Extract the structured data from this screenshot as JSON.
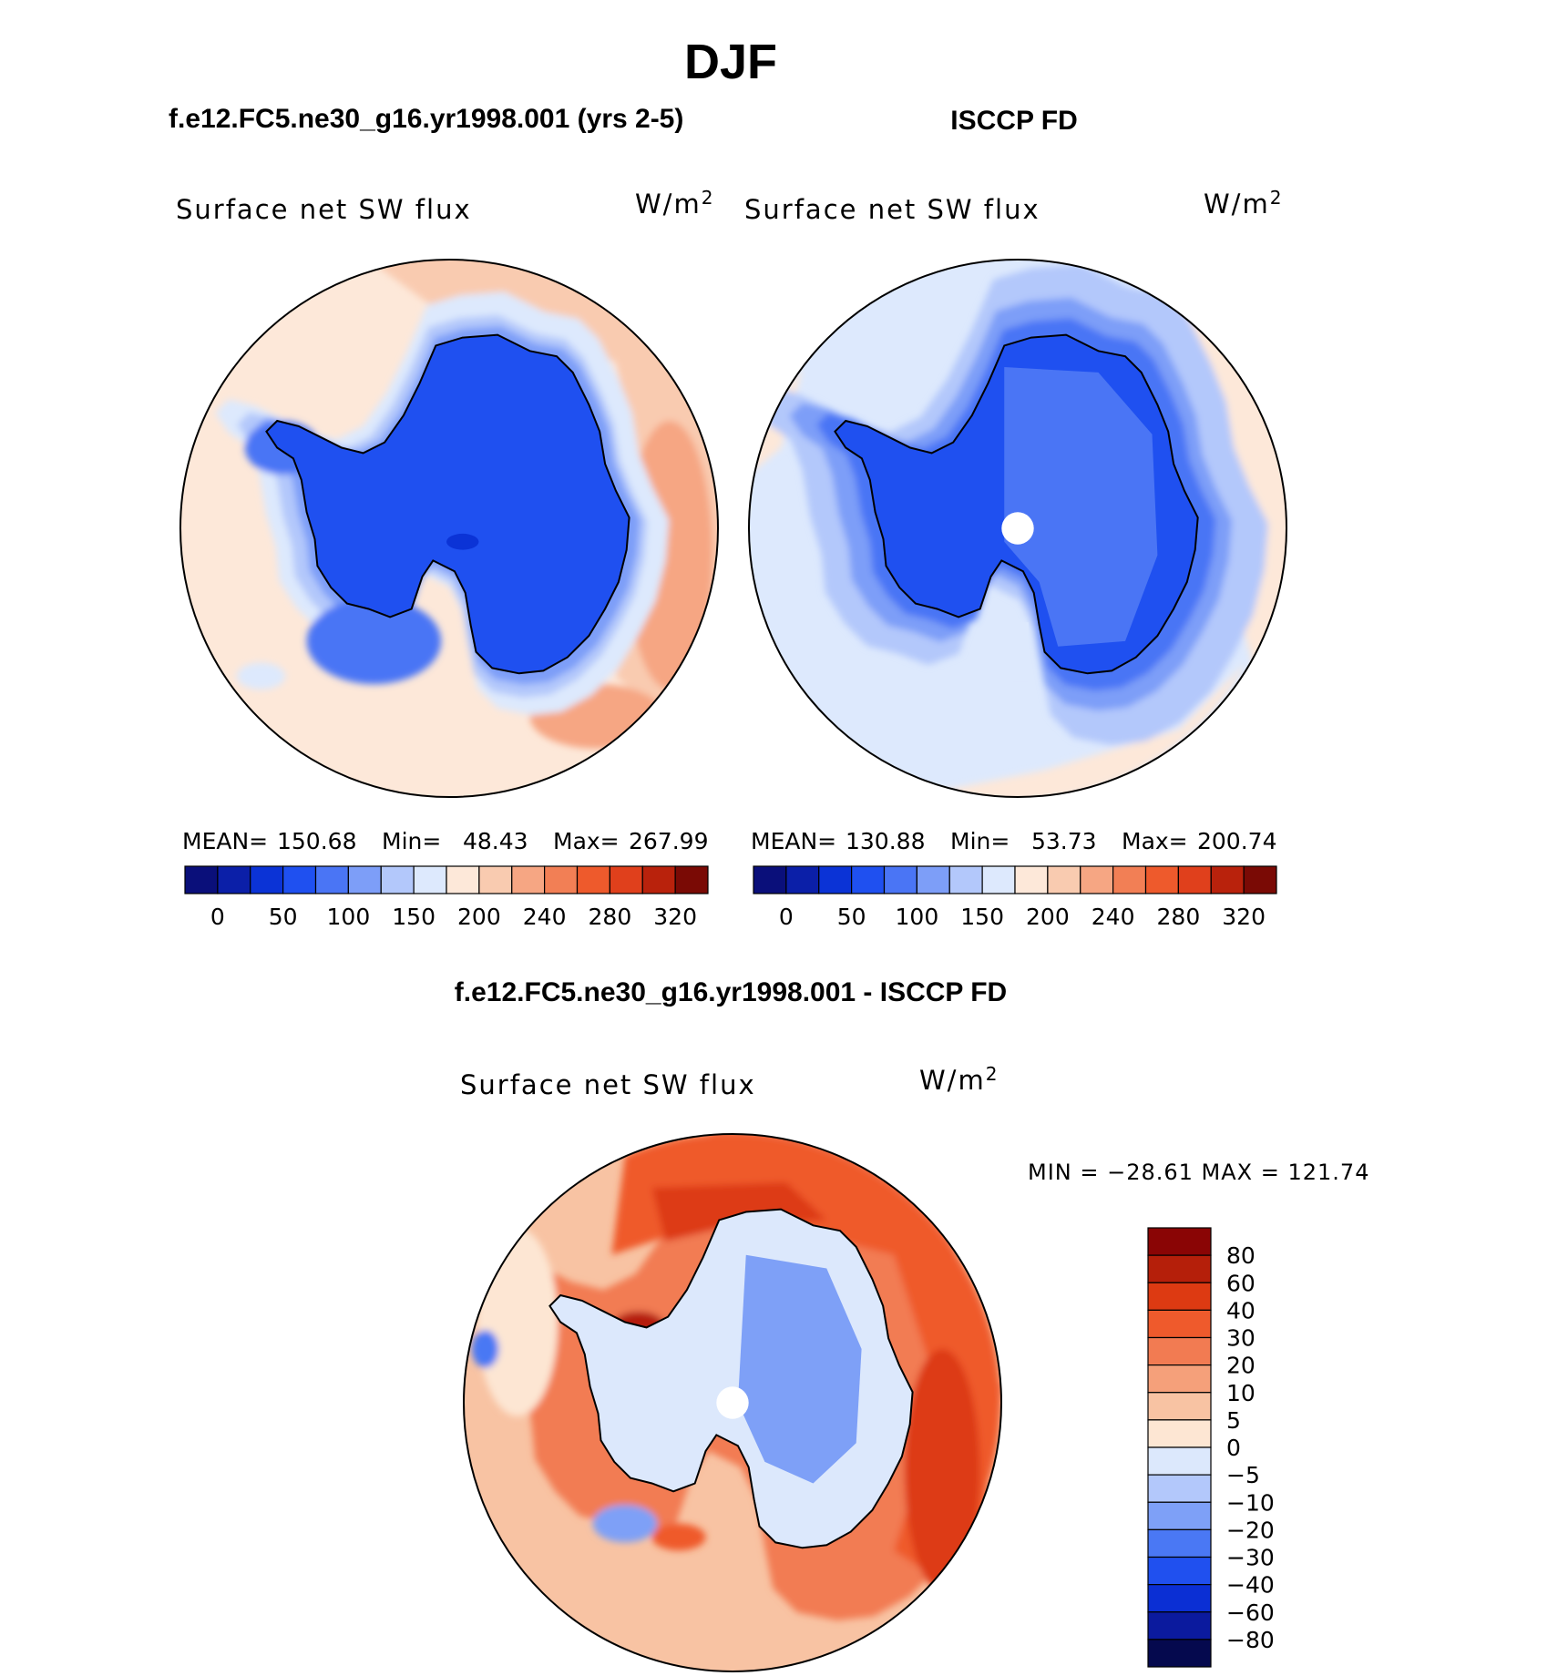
{
  "title": "DJF",
  "panels": [
    {
      "case_label": "f.e12.FC5.ne30_g16.yr1998.001 (yrs 2-5)",
      "variable": "Surface net SW flux",
      "units_base": "W/m",
      "units_exp": "2",
      "stats": {
        "mean_label": "MEAN=",
        "mean": "150.68",
        "min_label": "Min=",
        "min": "48.43",
        "max_label": "Max=",
        "max": "267.99"
      },
      "field": "model"
    },
    {
      "case_label": "ISCCP FD",
      "variable": "Surface net SW flux",
      "units_base": "W/m",
      "units_exp": "2",
      "stats": {
        "mean_label": "MEAN=",
        "mean": "130.88",
        "min_label": "Min=",
        "min": "53.73",
        "max_label": "Max=",
        "max": "200.74"
      },
      "field": "obs"
    }
  ],
  "diff_panel": {
    "case_label": "f.e12.FC5.ne30_g16.yr1998.001 - ISCCP FD",
    "variable": "Surface net SW flux",
    "units_base": "W/m",
    "units_exp": "2",
    "minmax": "MIN = −28.61  MAX = 121.74"
  },
  "chart_data": [
    {
      "type": "heatmap",
      "projection": "south polar stereographic",
      "title": "Surface net SW flux",
      "units": "W/m2",
      "mean": 150.68,
      "min": 48.43,
      "max": 267.99,
      "levels": [
        0,
        50,
        100,
        150,
        200,
        240,
        280,
        320
      ],
      "colorbar_tick_labels": [
        "0",
        "50",
        "100",
        "150",
        "200",
        "240",
        "280",
        "320"
      ]
    },
    {
      "type": "heatmap",
      "projection": "south polar stereographic",
      "title": "Surface net SW flux",
      "units": "W/m2",
      "mean": 130.88,
      "min": 53.73,
      "max": 200.74,
      "levels": [
        0,
        50,
        100,
        150,
        200,
        240,
        280,
        320
      ],
      "colorbar_tick_labels": [
        "0",
        "50",
        "100",
        "150",
        "200",
        "240",
        "280",
        "320"
      ]
    },
    {
      "type": "heatmap",
      "projection": "south polar stereographic",
      "title": "Surface net SW flux",
      "units": "W/m2",
      "min": -28.61,
      "max": 121.74,
      "levels": [
        -80,
        -60,
        -40,
        -30,
        -20,
        -10,
        -5,
        0,
        5,
        10,
        20,
        30,
        40,
        60,
        80
      ],
      "colorbar_tick_labels": [
        "80",
        "60",
        "40",
        "30",
        "20",
        "10",
        "5",
        "0",
        "−5",
        "−10",
        "−20",
        "−30",
        "−40",
        "−60",
        "−80"
      ]
    }
  ],
  "colors": {
    "mean_scale": [
      "#0a0f7a",
      "#0b1fa8",
      "#0b33d6",
      "#1f50f0",
      "#4a75f5",
      "#7d9ef8",
      "#b3c8fb",
      "#dde9fd",
      "#fde8d9",
      "#f9cbb0",
      "#f6a683",
      "#f27f55",
      "#ee5a2c",
      "#e0401c",
      "#b9220c",
      "#7a0a05"
    ],
    "diff_scale": [
      "#05094e",
      "#0b1a9e",
      "#0b2fd4",
      "#2050ef",
      "#4a78f4",
      "#7ea0f7",
      "#b3c8fb",
      "#dce8fc",
      "#fde6d3",
      "#f8c3a3",
      "#f5a07a",
      "#f27b52",
      "#ef5a2c",
      "#dd3a12",
      "#b51f0a",
      "#8a0505"
    ],
    "land_outline": "#000000",
    "pole_hole": "#ffffff"
  }
}
